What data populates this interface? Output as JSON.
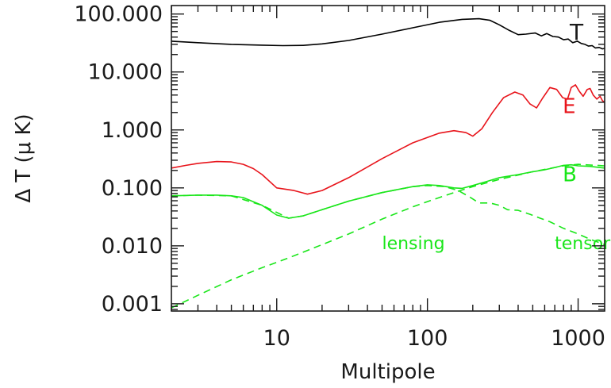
{
  "chart_data": {
    "type": "line",
    "xlabel": "Multipole",
    "ylabel": "Δ T (μ K)",
    "xscale": "log",
    "yscale": "log",
    "xlim": [
      2,
      1500
    ],
    "ylim": [
      0.00075,
      140
    ],
    "grid": false,
    "x_ticks": [
      10,
      100,
      1000
    ],
    "x_tick_labels": [
      "10",
      "100",
      "1000"
    ],
    "y_ticks": [
      0.001,
      0.01,
      0.1,
      1,
      10,
      100
    ],
    "y_tick_labels": [
      "0.001",
      "0.010",
      "0.100",
      "1.000",
      "10.000",
      "100.000"
    ],
    "colors": {
      "T": "#000000",
      "E": "#e8141b",
      "B": "#19e619",
      "axis": "#1a1a1a"
    },
    "series": [
      {
        "name": "T",
        "color": "#000000",
        "style": "solid",
        "x": [
          2,
          3,
          5,
          8,
          11,
          15,
          20,
          30,
          50,
          80,
          120,
          170,
          220,
          260,
          300,
          350,
          400,
          450,
          520,
          570,
          620,
          680,
          740,
          800,
          860,
          920,
          990,
          1050,
          1110,
          1170,
          1240,
          1300,
          1380,
          1450,
          1500
        ],
        "y": [
          34,
          32,
          30,
          29,
          28.5,
          28.8,
          30.5,
          35,
          45,
          58,
          72,
          81,
          83,
          78,
          65,
          52,
          44,
          45,
          47,
          42,
          46,
          41,
          40,
          36,
          37,
          32,
          34,
          31,
          30,
          28,
          28.5,
          26,
          26.5,
          25,
          25.5
        ]
      },
      {
        "name": "E",
        "color": "#e8141b",
        "style": "solid",
        "x": [
          2,
          2.5,
          3,
          4,
          5,
          6,
          7,
          8,
          10,
          13,
          16,
          20,
          30,
          50,
          80,
          120,
          150,
          180,
          200,
          230,
          270,
          320,
          380,
          430,
          480,
          530,
          580,
          650,
          720,
          790,
          850,
          900,
          960,
          1020,
          1080,
          1150,
          1200,
          1260,
          1330,
          1400,
          1450,
          1500
        ],
        "y": [
          0.22,
          0.245,
          0.265,
          0.285,
          0.28,
          0.255,
          0.215,
          0.17,
          0.1,
          0.09,
          0.078,
          0.09,
          0.15,
          0.32,
          0.6,
          0.88,
          0.97,
          0.9,
          0.78,
          1.05,
          2.0,
          3.6,
          4.5,
          4.0,
          2.8,
          2.4,
          3.5,
          5.4,
          5.0,
          3.6,
          3.4,
          5.4,
          6.0,
          4.6,
          3.8,
          5.0,
          5.2,
          4.0,
          3.4,
          3.8,
          3.2,
          3.0
        ]
      },
      {
        "name": "B",
        "color": "#19e619",
        "style": "solid",
        "x": [
          2,
          3,
          4,
          5,
          6,
          8,
          10,
          12,
          15,
          20,
          30,
          50,
          80,
          100,
          120,
          150,
          170,
          200,
          250,
          300,
          400,
          500,
          600,
          700,
          800,
          900,
          1000,
          1200,
          1500
        ],
        "y": [
          0.073,
          0.075,
          0.075,
          0.073,
          0.068,
          0.05,
          0.034,
          0.03,
          0.033,
          0.042,
          0.059,
          0.083,
          0.105,
          0.113,
          0.11,
          0.1,
          0.098,
          0.11,
          0.13,
          0.15,
          0.17,
          0.19,
          0.205,
          0.225,
          0.245,
          0.25,
          0.24,
          0.235,
          0.22
        ]
      },
      {
        "name": "lensing",
        "color": "#19e619",
        "style": "dashed",
        "x": [
          2,
          3,
          5,
          8,
          10,
          12,
          15,
          20,
          30,
          50,
          80,
          100,
          150,
          200,
          300,
          500,
          800,
          1000,
          1500
        ],
        "y": [
          0.00085,
          0.0014,
          0.0026,
          0.0042,
          0.0052,
          0.0062,
          0.0078,
          0.0105,
          0.016,
          0.029,
          0.047,
          0.058,
          0.083,
          0.105,
          0.14,
          0.19,
          0.24,
          0.255,
          0.24
        ]
      },
      {
        "name": "tensor",
        "color": "#19e619",
        "style": "dashed",
        "x": [
          2,
          3,
          5,
          8,
          12,
          15,
          20,
          30,
          50,
          80,
          100,
          130,
          160,
          190,
          220,
          260,
          300,
          340,
          400,
          480,
          560,
          650,
          800,
          1000,
          1200,
          1500
        ],
        "y": [
          0.073,
          0.075,
          0.073,
          0.05,
          0.03,
          0.033,
          0.042,
          0.059,
          0.083,
          0.105,
          0.11,
          0.105,
          0.09,
          0.07,
          0.055,
          0.055,
          0.05,
          0.042,
          0.041,
          0.035,
          0.03,
          0.026,
          0.02,
          0.016,
          0.013,
          0.0105
        ]
      }
    ],
    "annotations": [
      {
        "text": "T",
        "x": 880,
        "y": 36,
        "color": "#1a1a1a",
        "font_size": 28
      },
      {
        "text": "E",
        "x": 790,
        "y": 1.95,
        "color": "#e8141b",
        "font_size": 26
      },
      {
        "text": "B",
        "x": 790,
        "y": 0.13,
        "color": "#19e619",
        "font_size": 26
      },
      {
        "text": "lensing",
        "x": 50,
        "y": 0.0088,
        "color": "#19e619",
        "font_size": 22
      },
      {
        "text": "tensor",
        "x": 700,
        "y": 0.0088,
        "color": "#19e619",
        "font_size": 22
      }
    ]
  }
}
